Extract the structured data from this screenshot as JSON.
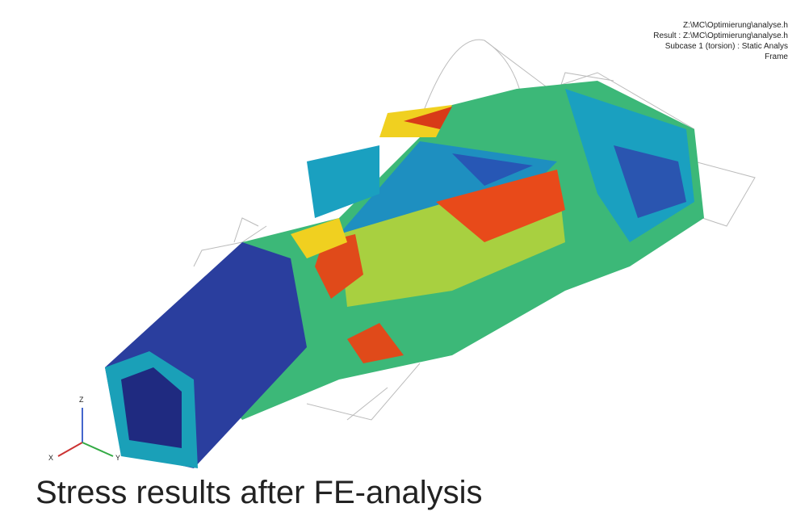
{
  "overlay": {
    "lines": [
      "Z:\\MC\\Optimierung\\analyse.h",
      "Result : Z:\\MC\\Optimierung\\analyse.h",
      "Subcase 1 (torsion) : Static Analys",
      "Frame"
    ]
  },
  "axes_triad": {
    "z": "Z",
    "x": "X",
    "y": "Y"
  },
  "caption": "Stress results after FE-analysis"
}
